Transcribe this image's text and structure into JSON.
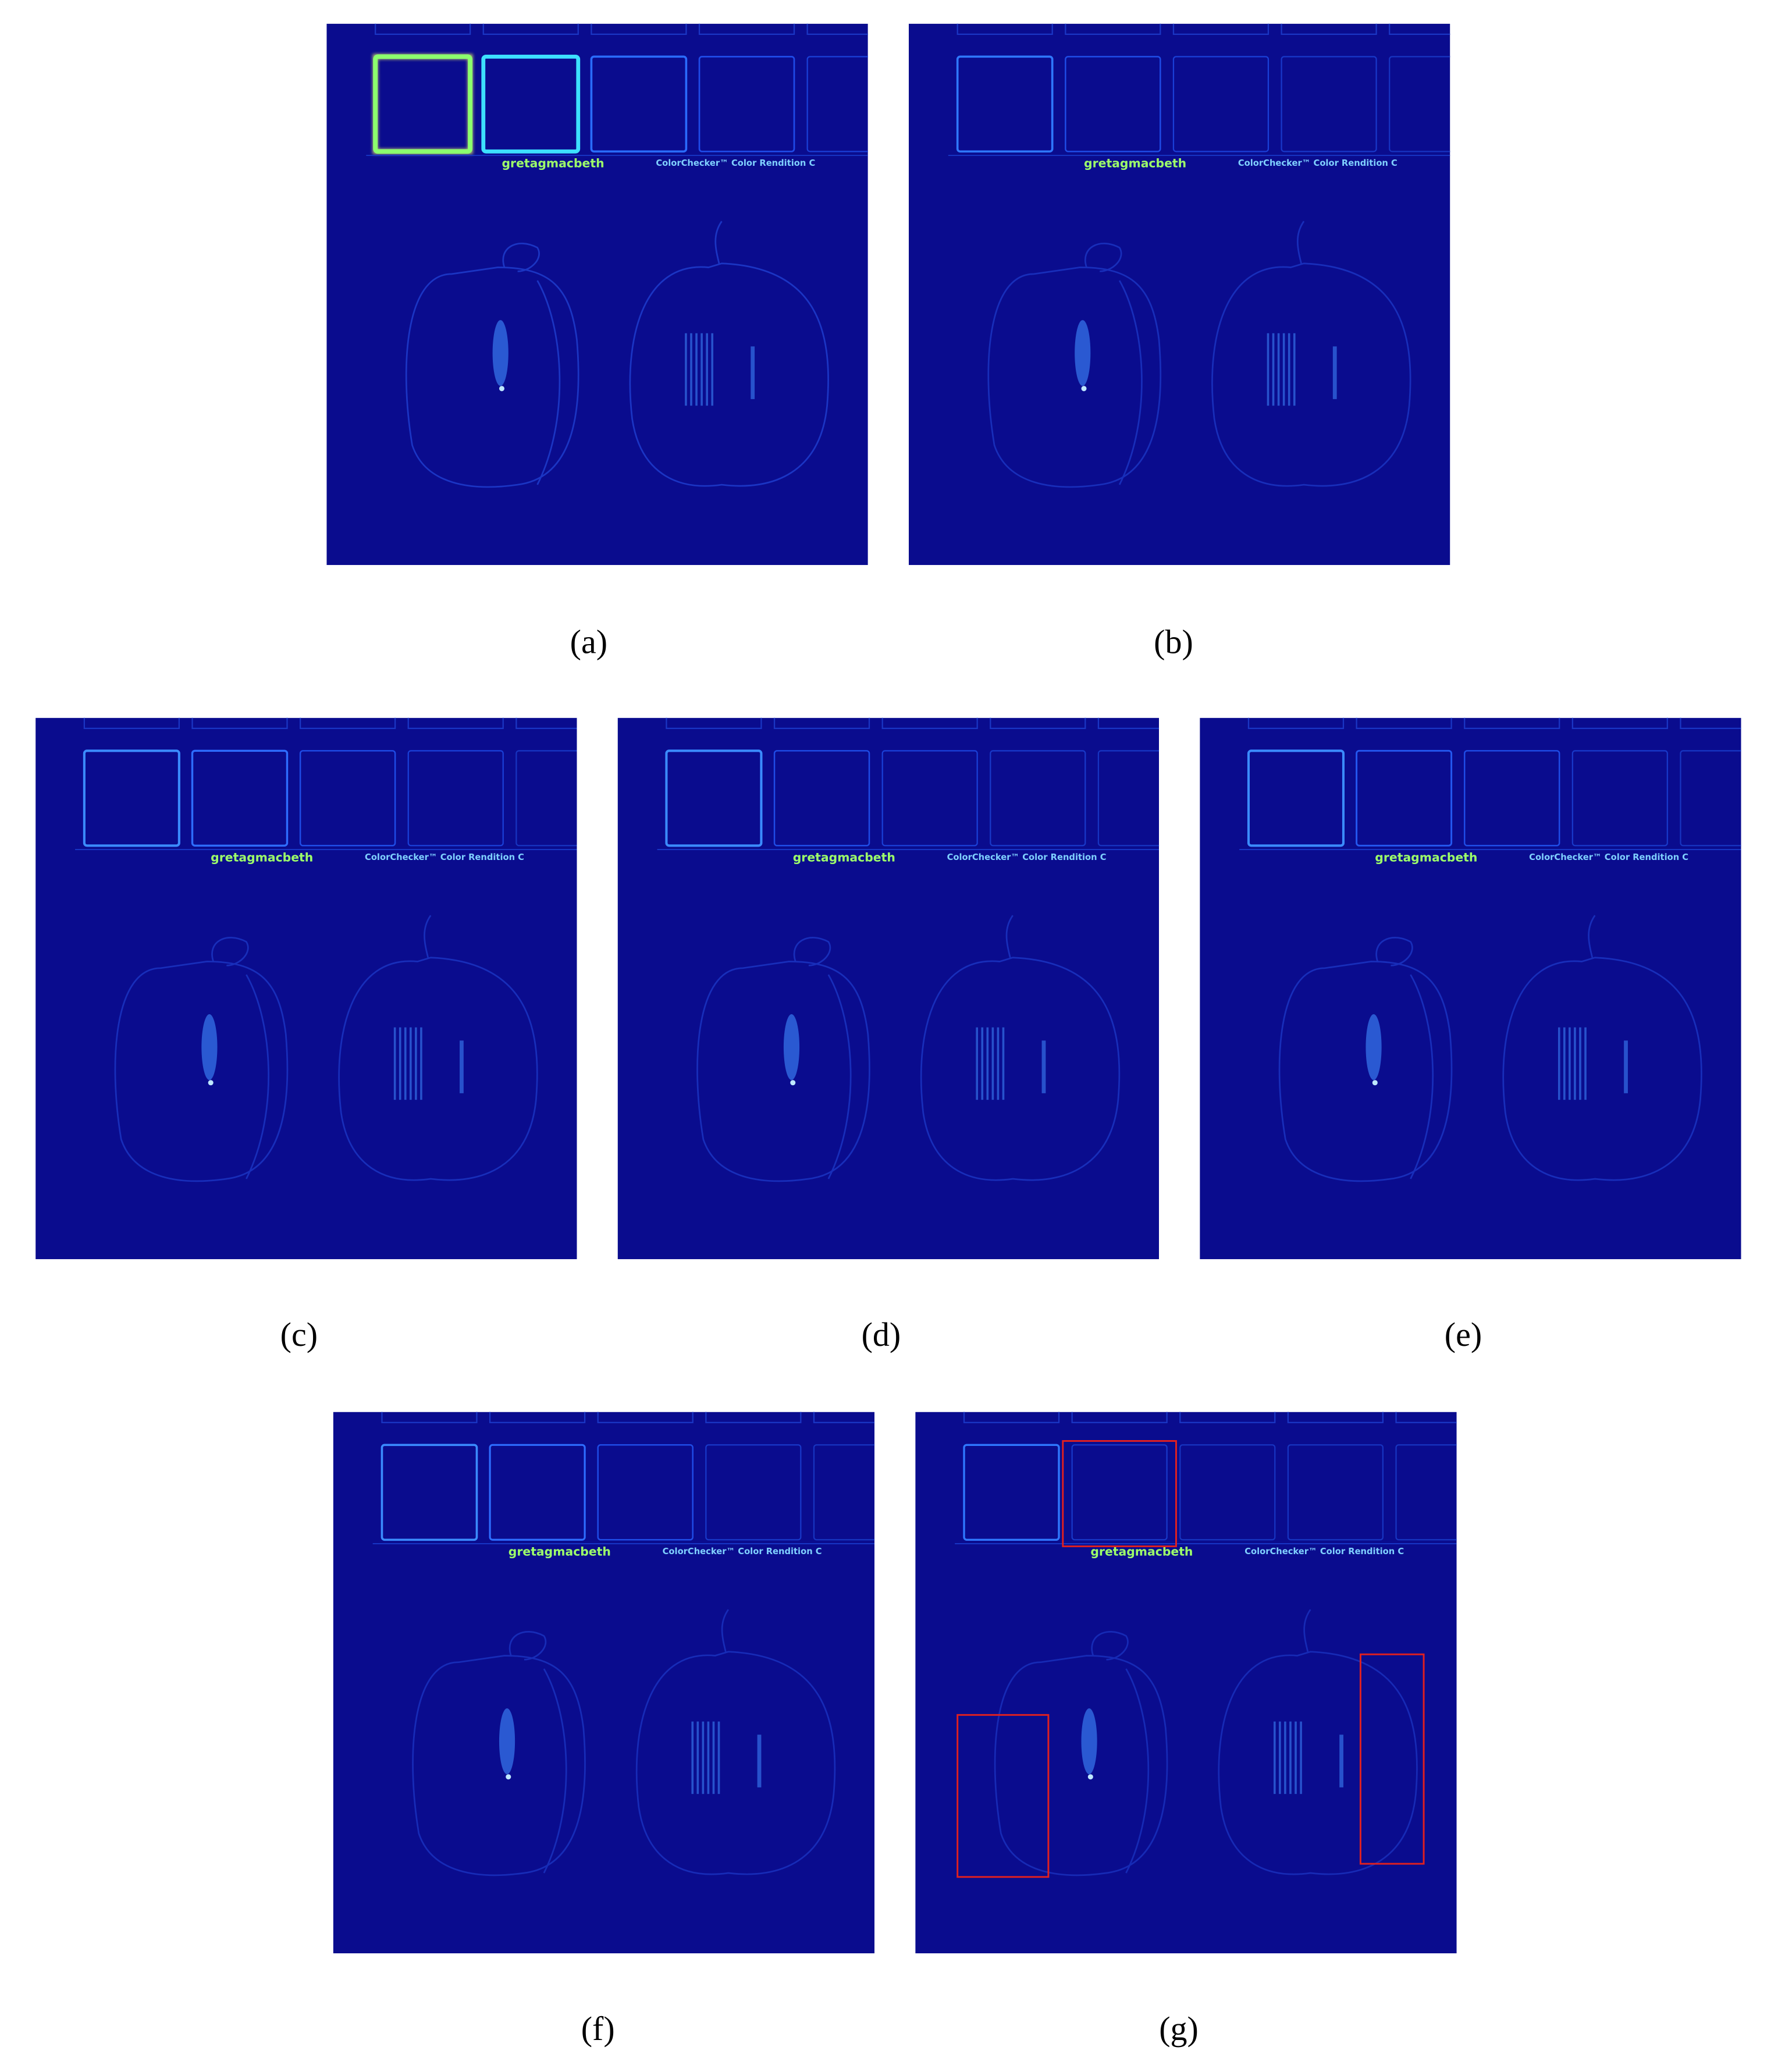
{
  "figure": {
    "image_text": [
      "gretagmacbeth",
      "ColorChecker™ Color Rendition C"
    ],
    "panels": [
      {
        "caption": "(a)"
      },
      {
        "caption": "(b)"
      },
      {
        "caption": "(c)"
      },
      {
        "caption": "(d)"
      },
      {
        "caption": "(e)"
      },
      {
        "caption": "(f)"
      },
      {
        "caption": "(g)"
      }
    ]
  }
}
